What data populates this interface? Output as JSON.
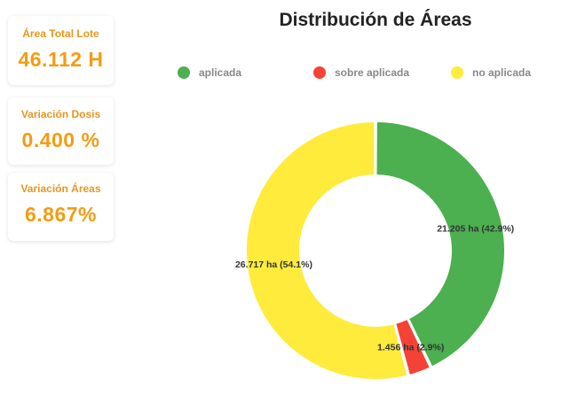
{
  "cards": [
    {
      "label": "Área Total Lote",
      "value": "46.112 H"
    },
    {
      "label": "Variación Dosis",
      "value": "0.400 %"
    },
    {
      "label": "Variación Áreas",
      "value": "6.867%"
    }
  ],
  "chart_data": {
    "type": "pie",
    "title": "Distribución de Áreas",
    "legend_position": "top",
    "categories": [
      "aplicada",
      "sobre aplicada",
      "no aplicada"
    ],
    "values": [
      21.205,
      1.456,
      26.717
    ],
    "units": "ha",
    "percentages": [
      42.9,
      2.9,
      54.1
    ],
    "data_labels": [
      "21.205 ha (42.9%)",
      "1.456 ha (2.9%)",
      "26.717 ha (54.1%)"
    ],
    "colors": [
      "#4caf50",
      "#f44336",
      "#ffeb3b"
    ]
  }
}
